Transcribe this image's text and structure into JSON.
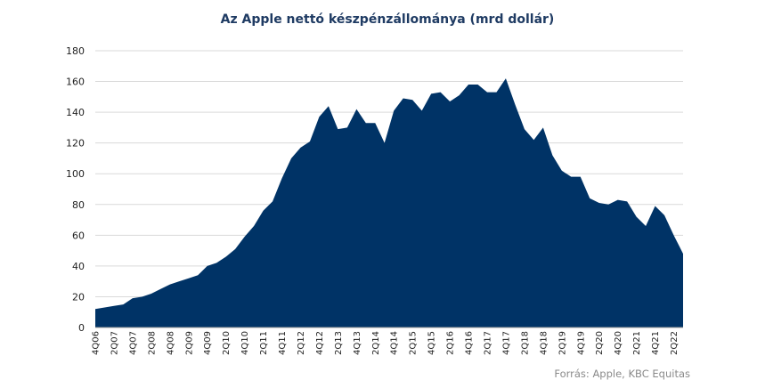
{
  "chart_data": {
    "type": "area",
    "title": "Az Apple nettó készpénzállománya (mrd dollár)",
    "xlabel": "",
    "ylabel": "",
    "ylim": [
      0,
      180
    ],
    "yticks": [
      0,
      20,
      40,
      60,
      80,
      100,
      120,
      140,
      160,
      180
    ],
    "grid": true,
    "color": "#003366",
    "x": [
      "4Q06",
      "1Q07",
      "2Q07",
      "3Q07",
      "4Q07",
      "1Q08",
      "2Q08",
      "3Q08",
      "4Q08",
      "1Q09",
      "2Q09",
      "3Q09",
      "4Q09",
      "1Q10",
      "2Q10",
      "3Q10",
      "4Q10",
      "1Q11",
      "2Q11",
      "3Q11",
      "4Q11",
      "1Q12",
      "2Q12",
      "3Q12",
      "4Q12",
      "1Q13",
      "2Q13",
      "3Q13",
      "4Q13",
      "1Q14",
      "2Q14",
      "3Q14",
      "4Q14",
      "1Q15",
      "2Q15",
      "3Q15",
      "4Q15",
      "1Q16",
      "2Q16",
      "3Q16",
      "4Q16",
      "1Q17",
      "2Q17",
      "3Q17",
      "4Q17",
      "1Q18",
      "2Q18",
      "3Q18",
      "4Q18",
      "1Q19",
      "2Q19",
      "3Q19",
      "4Q19",
      "1Q20",
      "2Q20",
      "3Q20",
      "4Q20",
      "1Q21",
      "2Q21",
      "3Q21",
      "4Q21",
      "1Q22",
      "2Q22",
      "3Q22"
    ],
    "x_tick_labels": [
      "4Q06",
      "2Q07",
      "4Q07",
      "2Q08",
      "4Q08",
      "2Q09",
      "4Q09",
      "2Q10",
      "4Q10",
      "2Q11",
      "4Q11",
      "2Q12",
      "4Q12",
      "2Q13",
      "4Q13",
      "2Q14",
      "4Q14",
      "2Q15",
      "4Q15",
      "2Q16",
      "4Q16",
      "2Q17",
      "4Q17",
      "2Q18",
      "4Q18",
      "2Q19",
      "4Q19",
      "2Q20",
      "4Q20",
      "2Q21",
      "4Q21",
      "2Q22"
    ],
    "values": [
      12,
      13,
      14,
      15,
      19,
      20,
      22,
      25,
      28,
      30,
      32,
      34,
      40,
      42,
      46,
      51,
      59,
      66,
      76,
      82,
      97,
      110,
      117,
      121,
      137,
      144,
      129,
      130,
      142,
      133,
      133,
      120,
      141,
      149,
      148,
      141,
      152,
      153,
      147,
      151,
      158,
      158,
      153,
      153,
      162,
      145,
      129,
      122,
      130,
      112,
      102,
      98,
      98,
      84,
      81,
      80,
      83,
      82,
      72,
      66,
      79,
      73,
      60,
      48
    ]
  },
  "source": "Forrás: Apple, KBC Equitas"
}
